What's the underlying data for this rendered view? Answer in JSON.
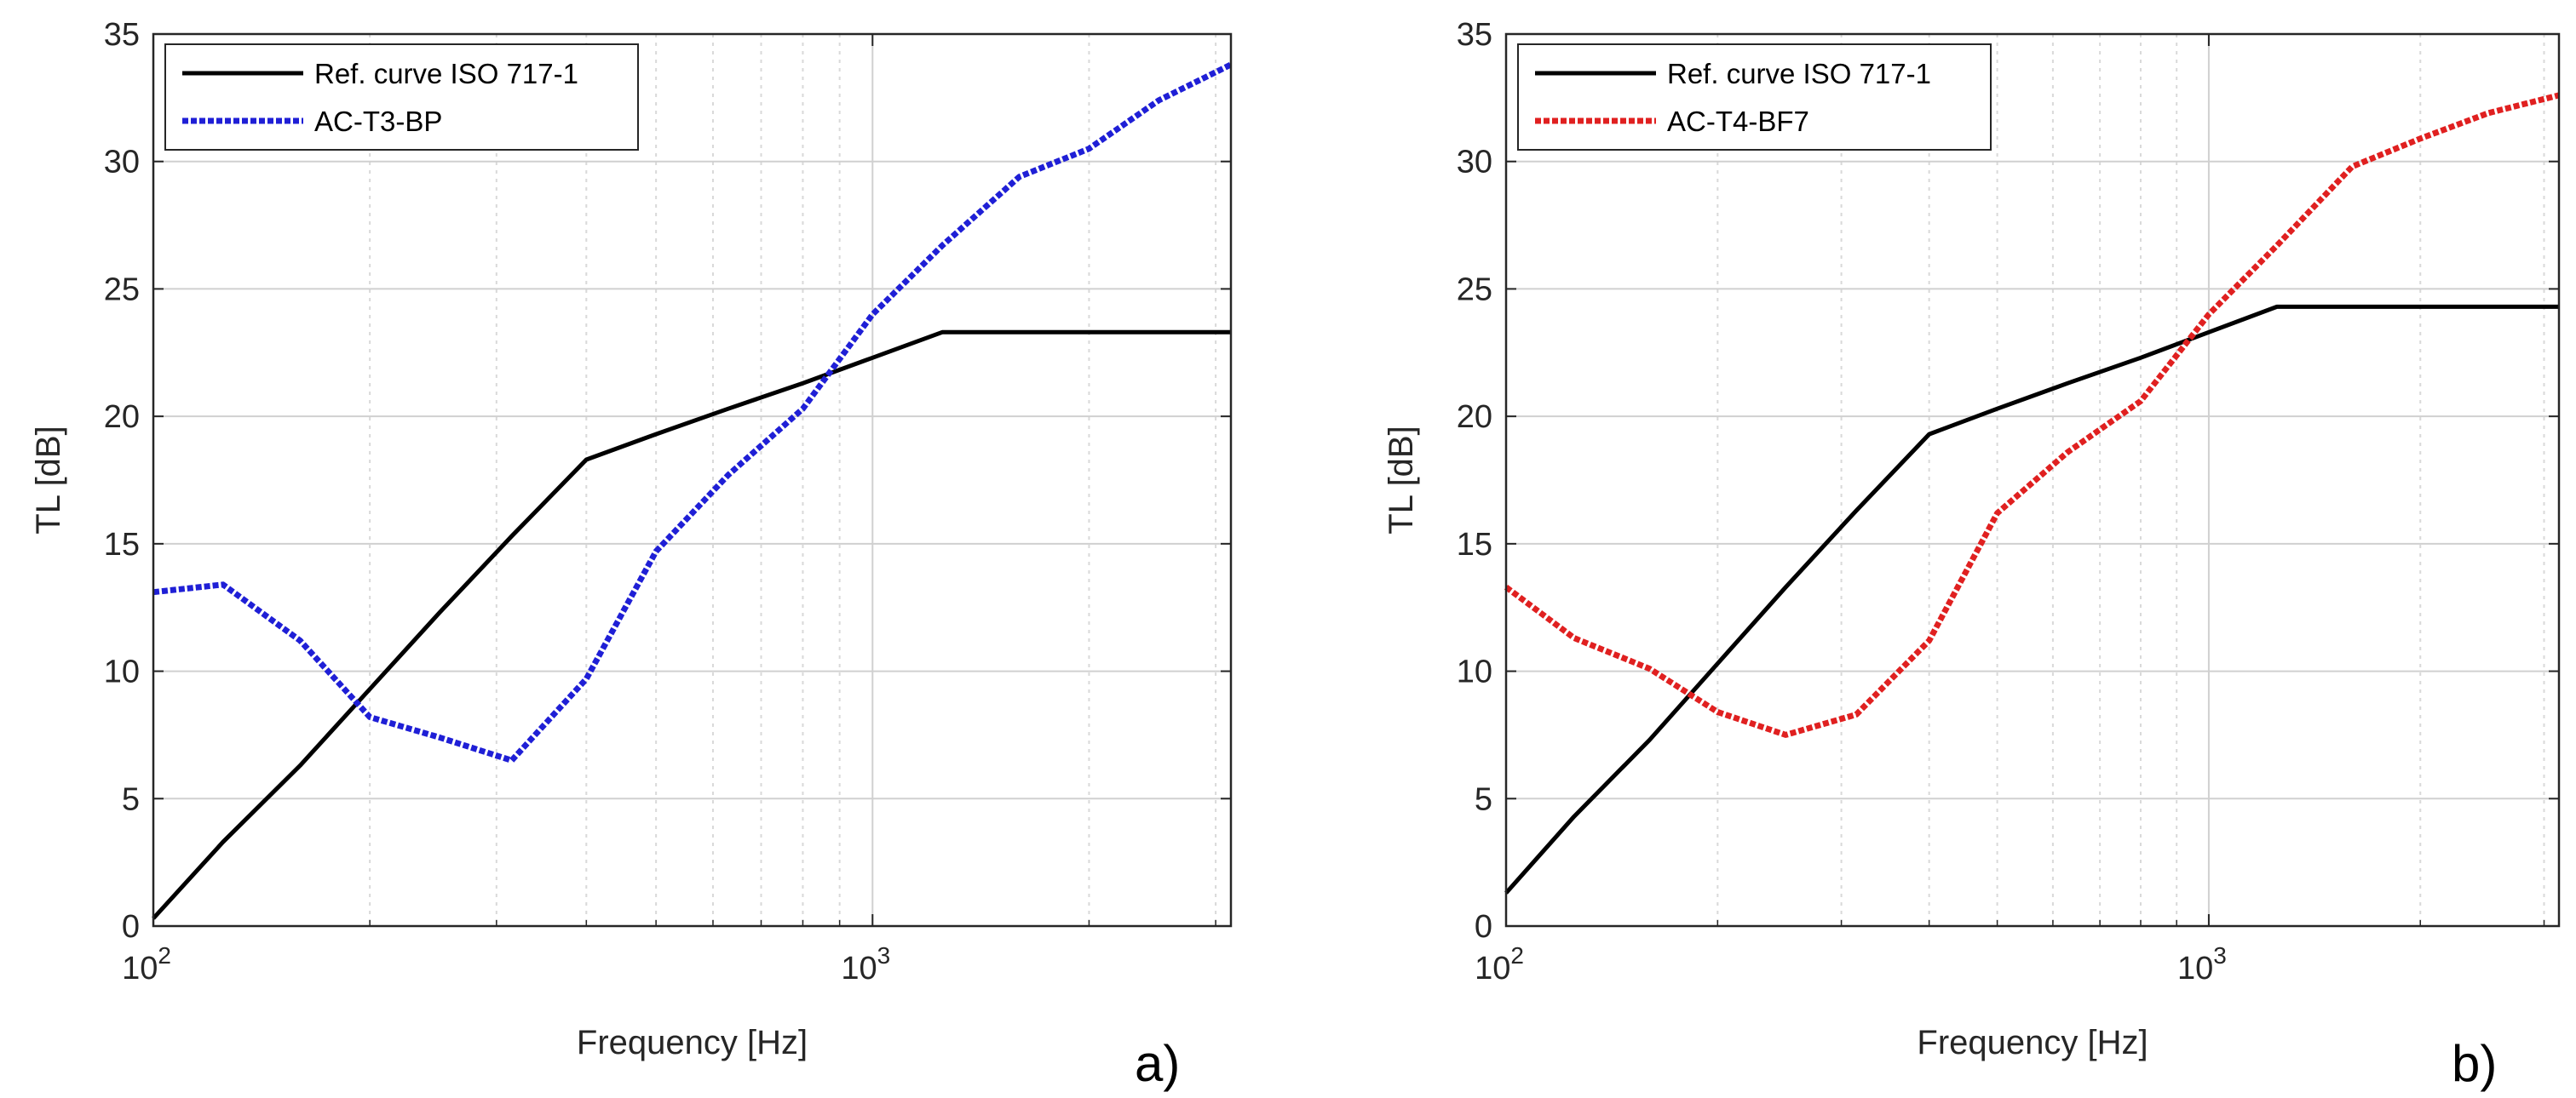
{
  "chart_data": [
    {
      "type": "line",
      "panel_tag": "a)",
      "xlabel": "Frequency [Hz]",
      "ylabel": "TL [dB]",
      "xscale": "log",
      "xlim": [
        100,
        3150
      ],
      "ylim": [
        0,
        35
      ],
      "yticks": [
        "0",
        "5",
        "10",
        "15",
        "20",
        "25",
        "30",
        "35"
      ],
      "xticks": [
        {
          "base": "10",
          "exp": "2",
          "value": 100
        },
        {
          "base": "10",
          "exp": "3",
          "value": 1000
        }
      ],
      "grid": true,
      "legend_position": "top-left",
      "series": [
        {
          "name": "Ref. curve ISO 717-1",
          "color": "#000000",
          "style": "solid",
          "x": [
            100,
            125,
            160,
            200,
            250,
            315,
            400,
            500,
            630,
            800,
            1000,
            1250,
            1600,
            2000,
            2500,
            3150
          ],
          "y": [
            0.3,
            3.3,
            6.3,
            9.3,
            12.3,
            15.3,
            18.3,
            19.3,
            20.3,
            21.3,
            22.3,
            23.3,
            23.3,
            23.3,
            23.3,
            23.3
          ]
        },
        {
          "name": "AC-T3-BP",
          "color": "#1f1fd6",
          "style": "dotted",
          "x": [
            100,
            125,
            160,
            200,
            250,
            315,
            400,
            500,
            630,
            800,
            1000,
            1250,
            1600,
            2000,
            2500,
            3150
          ],
          "y": [
            13.1,
            13.4,
            11.2,
            8.2,
            7.4,
            6.5,
            9.7,
            14.7,
            17.7,
            20.3,
            24.0,
            26.7,
            29.4,
            30.5,
            32.4,
            33.8
          ]
        }
      ]
    },
    {
      "type": "line",
      "panel_tag": "b)",
      "xlabel": "Frequency [Hz]",
      "ylabel": "TL [dB]",
      "xscale": "log",
      "xlim": [
        100,
        3150
      ],
      "ylim": [
        0,
        35
      ],
      "yticks": [
        "0",
        "5",
        "10",
        "15",
        "20",
        "25",
        "30",
        "35"
      ],
      "xticks": [
        {
          "base": "10",
          "exp": "2",
          "value": 100
        },
        {
          "base": "10",
          "exp": "3",
          "value": 1000
        }
      ],
      "grid": true,
      "legend_position": "top-left",
      "series": [
        {
          "name": "Ref. curve ISO 717-1",
          "color": "#000000",
          "style": "solid",
          "x": [
            100,
            125,
            160,
            200,
            250,
            315,
            400,
            500,
            630,
            800,
            1000,
            1250,
            1600,
            2000,
            2500,
            3150
          ],
          "y": [
            1.3,
            4.3,
            7.3,
            10.3,
            13.3,
            16.3,
            19.3,
            20.3,
            21.3,
            22.3,
            23.3,
            24.3,
            24.3,
            24.3,
            24.3,
            24.3
          ]
        },
        {
          "name": "AC-T4-BF7",
          "color": "#e02020",
          "style": "dotted",
          "x": [
            100,
            125,
            160,
            200,
            250,
            315,
            400,
            500,
            630,
            800,
            1000,
            1250,
            1600,
            2000,
            2500,
            3150
          ],
          "y": [
            13.3,
            11.3,
            10.1,
            8.4,
            7.5,
            8.3,
            11.2,
            16.2,
            18.6,
            20.6,
            24.0,
            26.7,
            29.8,
            30.9,
            31.9,
            32.6
          ]
        }
      ]
    }
  ]
}
